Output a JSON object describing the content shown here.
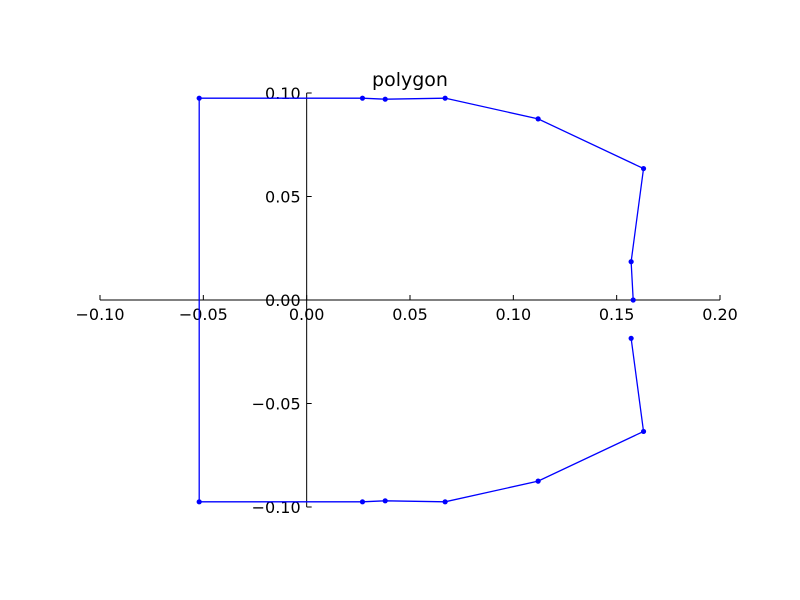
{
  "chart_data": {
    "type": "line",
    "title": "polygon",
    "xlabel": "",
    "ylabel": "",
    "xlim": [
      -0.1,
      0.2
    ],
    "ylim": [
      -0.1,
      0.1
    ],
    "grid": false,
    "x_ticks": [
      "−0.10",
      "−0.05",
      "0.00",
      "0.05",
      "0.10",
      "0.15",
      "0.20"
    ],
    "y_ticks": [
      "−0.10",
      "−0.05",
      "0.00",
      "0.05",
      "0.10"
    ],
    "line_color": "#0000ff",
    "series": [
      {
        "x": [
          0.158,
          0.157,
          0.163,
          0.112,
          0.067,
          0.038,
          0.027,
          -0.052,
          -0.052,
          0.027,
          0.038,
          0.067,
          0.112,
          0.163,
          0.157
        ],
        "y": [
          0.0,
          0.0185,
          0.0635,
          0.0875,
          0.0975,
          0.097,
          0.0975,
          0.0975,
          -0.0975,
          -0.0975,
          -0.097,
          -0.0975,
          -0.0875,
          -0.0635,
          -0.0185
        ]
      }
    ]
  }
}
